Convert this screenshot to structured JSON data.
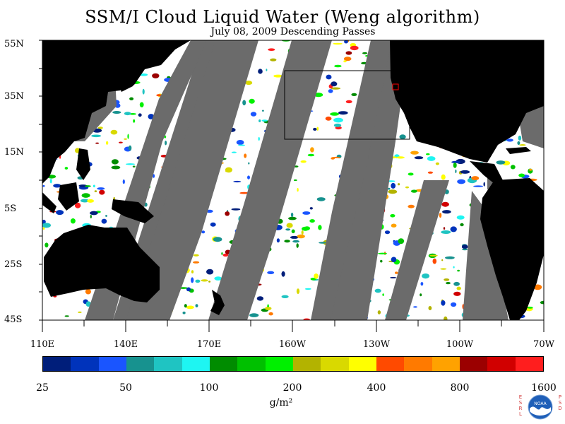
{
  "title": "SSM/I Cloud Liquid Water (Weng algorithm)",
  "subtitle": "July 08, 2009  Descending Passes",
  "y_axis_labels": [
    "55N",
    "35N",
    "15N",
    "5S",
    "25S",
    "45S"
  ],
  "x_axis_labels": [
    "110E",
    "140E",
    "170E",
    "160W",
    "130W",
    "100W",
    "70W"
  ],
  "colorbar": {
    "tick_labels": [
      "25",
      "50",
      "100",
      "200",
      "400",
      "800",
      "1600"
    ],
    "units": "g/m²",
    "colors": [
      "#001e7a",
      "#0033bb",
      "#1a55ff",
      "#17928f",
      "#1fc4c2",
      "#1ef5f2",
      "#008c00",
      "#00c000",
      "#00f000",
      "#b3b300",
      "#d9d900",
      "#ffff00",
      "#ff4a00",
      "#ff7a00",
      "#ffa200",
      "#9b0000",
      "#d10000",
      "#ff1e1e"
    ]
  },
  "map_colors": {
    "land": "#000000",
    "no_data_swath_gap": "#6b6b6b",
    "clear_ocean": "#ffffff",
    "box_outline": "#000000",
    "marker": "#ff0000"
  },
  "logo": {
    "left_letters": [
      "E",
      "S",
      "R",
      "L"
    ],
    "right_letters": [
      "P",
      "S",
      "D"
    ],
    "emblem_text": "NOAA"
  }
}
